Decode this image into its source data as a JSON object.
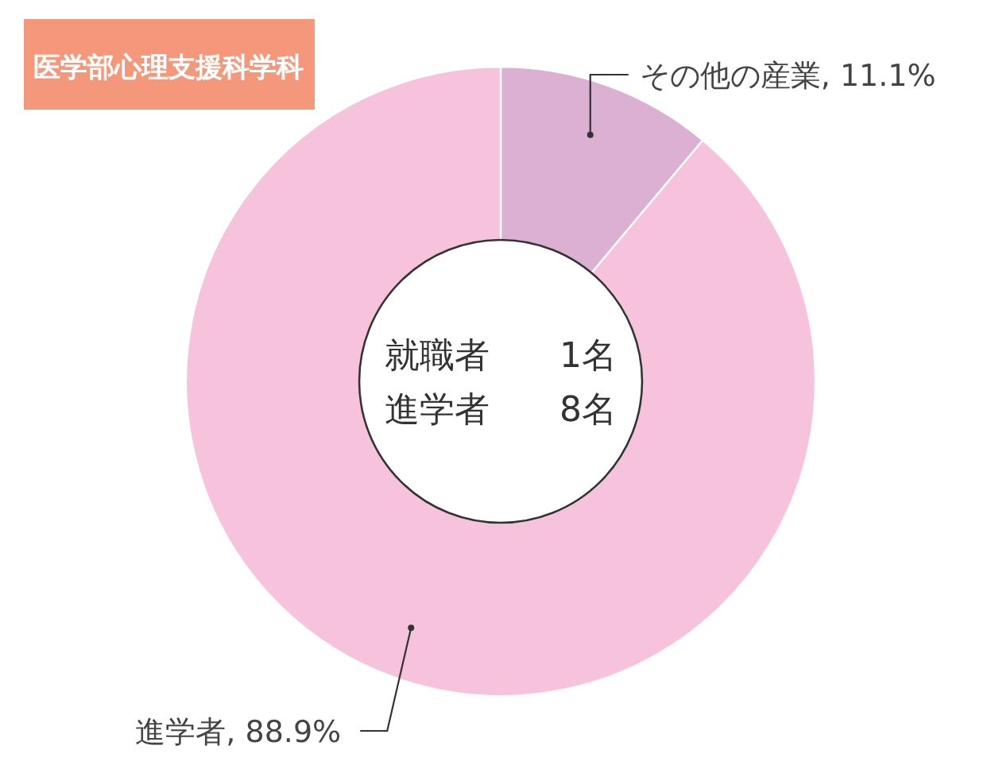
{
  "chart_data": {
    "type": "donut",
    "title": "医学部心理支援科学科",
    "categories": [
      "その他の産業",
      "進学者"
    ],
    "values": [
      11.1,
      88.9
    ],
    "colors": [
      "#dbb0d2",
      "#f6c2dc"
    ],
    "value_labels": [
      "11.1%",
      "88.9%"
    ],
    "annotations": [
      "就職者　　1名",
      "進学者　　8名"
    ]
  }
}
